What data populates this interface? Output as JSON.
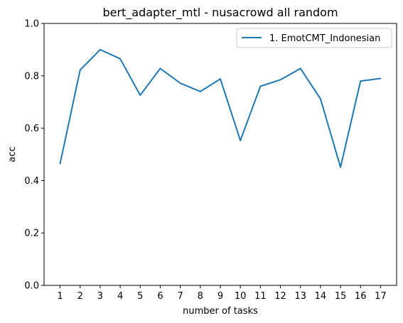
{
  "chart_data": {
    "type": "line",
    "title": "bert_adapter_mtl - nusacrowd all random",
    "xlabel": "number of tasks",
    "ylabel": "acc",
    "x": [
      1,
      2,
      3,
      4,
      5,
      6,
      7,
      8,
      9,
      10,
      11,
      12,
      13,
      14,
      15,
      16,
      17
    ],
    "xticks": [
      "1",
      "2",
      "3",
      "4",
      "5",
      "6",
      "7",
      "8",
      "9",
      "10",
      "11",
      "12",
      "13",
      "14",
      "15",
      "16",
      "17"
    ],
    "ylim": [
      0.0,
      1.0
    ],
    "yticks": [
      "0.0",
      "0.2",
      "0.4",
      "0.6",
      "0.8",
      "1.0"
    ],
    "grid": false,
    "legend_position": "top-right",
    "series": [
      {
        "name": "1. EmotCMT_Indonesian",
        "color": "#1f77b4",
        "values": [
          0.465,
          0.822,
          0.9,
          0.865,
          0.726,
          0.828,
          0.772,
          0.74,
          0.788,
          0.553,
          0.76,
          0.785,
          0.828,
          0.712,
          0.451,
          0.78,
          0.79
        ]
      }
    ]
  }
}
